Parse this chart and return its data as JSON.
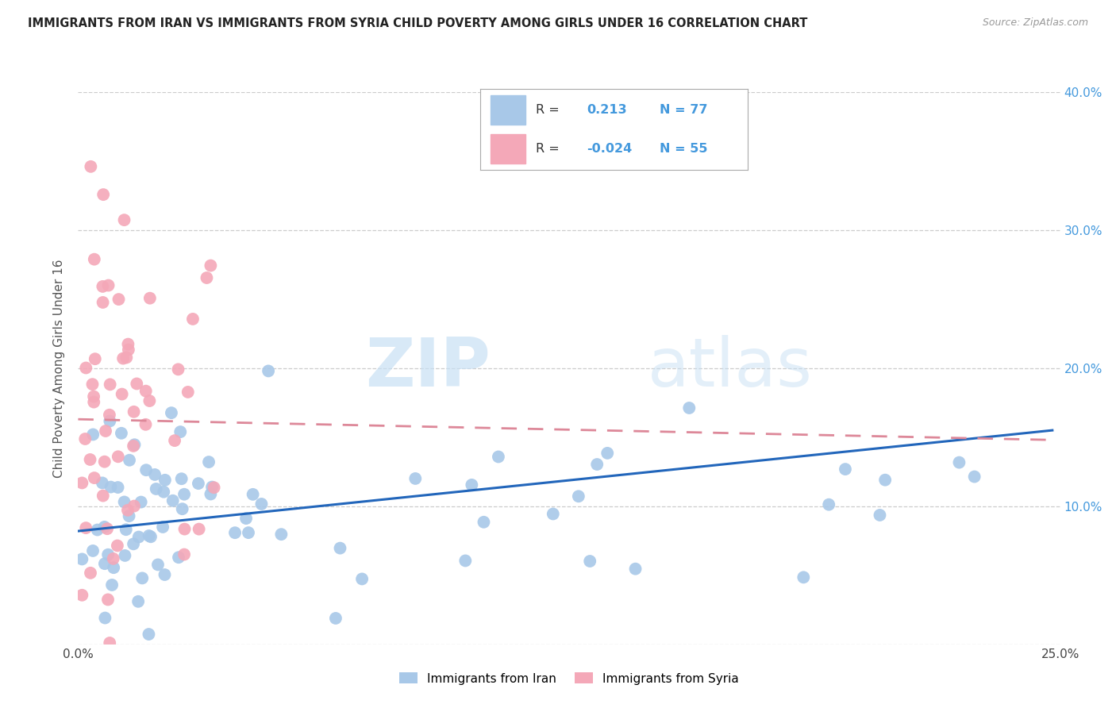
{
  "title": "IMMIGRANTS FROM IRAN VS IMMIGRANTS FROM SYRIA CHILD POVERTY AMONG GIRLS UNDER 16 CORRELATION CHART",
  "source": "Source: ZipAtlas.com",
  "ylabel": "Child Poverty Among Girls Under 16",
  "xlim": [
    0,
    0.25
  ],
  "ylim": [
    0,
    0.4
  ],
  "iran_R": "0.213",
  "iran_N": "77",
  "syria_R": "-0.024",
  "syria_N": "55",
  "iran_color": "#a8c8e8",
  "syria_color": "#f4a8b8",
  "iran_line_color": "#2266bb",
  "syria_line_color": "#dd8899",
  "background_color": "#ffffff",
  "watermark_zip": "ZIP",
  "watermark_atlas": "atlas",
  "legend_box_color": "#dddddd",
  "axis_label_color": "#555555",
  "tick_color_blue": "#4499dd",
  "tick_color_dark": "#444444",
  "iran_trend_x0": 0.0,
  "iran_trend_x1": 0.248,
  "iran_trend_y0": 0.082,
  "iran_trend_y1": 0.155,
  "syria_trend_x0": 0.0,
  "syria_trend_x1": 0.248,
  "syria_trend_y0": 0.163,
  "syria_trend_y1": 0.148
}
